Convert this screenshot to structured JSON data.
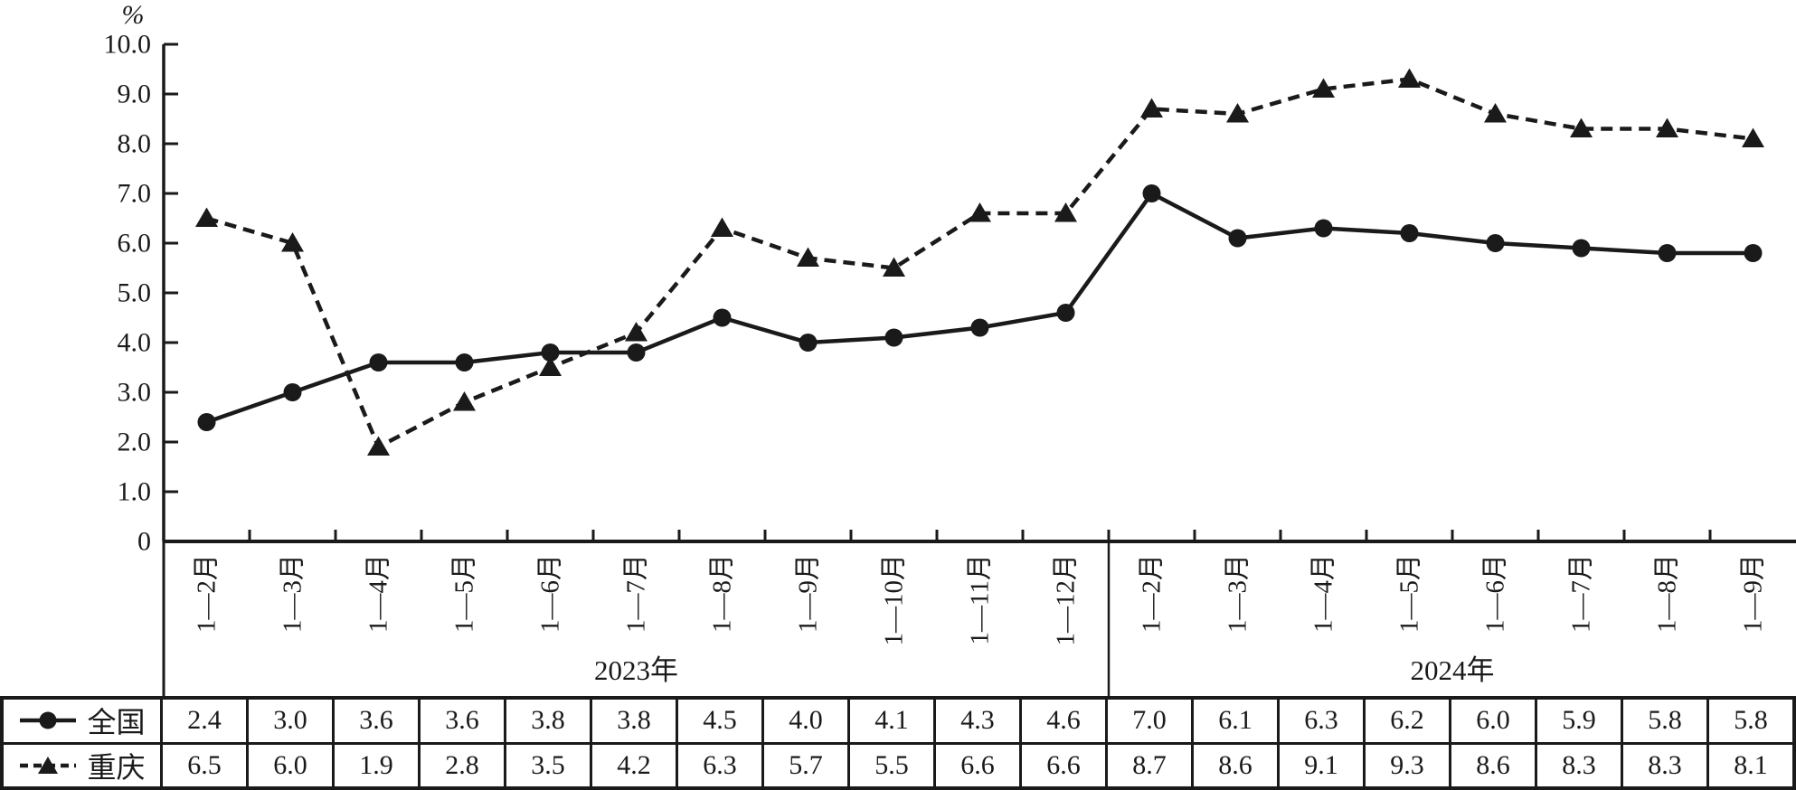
{
  "colors": {
    "ink": "#1a1a1a",
    "paper": "#ffffff"
  },
  "chart_data": {
    "type": "line",
    "title": "",
    "xlabel": "",
    "ylabel": "%",
    "ylim": [
      0,
      10
    ],
    "ytick_step": 1.0,
    "ytick_labels": [
      "0",
      "1.0",
      "2.0",
      "3.0",
      "4.0",
      "5.0",
      "6.0",
      "7.0",
      "8.0",
      "9.0",
      "10.0"
    ],
    "grid": false,
    "legend_position": "table-left",
    "categories": [
      "1—2月",
      "1—3月",
      "1—4月",
      "1—5月",
      "1—6月",
      "1—7月",
      "1—8月",
      "1—9月",
      "1—10月",
      "1—11月",
      "1—12月",
      "1—2月",
      "1—3月",
      "1—4月",
      "1—5月",
      "1—6月",
      "1—7月",
      "1—8月",
      "1—9月"
    ],
    "year_groups": [
      {
        "label": "2023年",
        "span": 11
      },
      {
        "label": "2024年",
        "span": 8
      }
    ],
    "series": [
      {
        "name": "全国",
        "key": "national",
        "line": "solid",
        "marker": "circle",
        "color": "#1a1a1a",
        "values": [
          2.4,
          3.0,
          3.6,
          3.6,
          3.8,
          3.8,
          4.5,
          4.0,
          4.1,
          4.3,
          4.6,
          7.0,
          6.1,
          6.3,
          6.2,
          6.0,
          5.9,
          5.8,
          5.8
        ]
      },
      {
        "name": "重庆",
        "key": "chongqing",
        "line": "dashed",
        "marker": "triangle",
        "color": "#1a1a1a",
        "values": [
          6.5,
          6.0,
          1.9,
          2.8,
          3.5,
          4.2,
          6.3,
          5.7,
          5.5,
          6.6,
          6.6,
          8.7,
          8.6,
          9.1,
          9.3,
          8.6,
          8.3,
          8.3,
          8.1
        ]
      }
    ]
  }
}
